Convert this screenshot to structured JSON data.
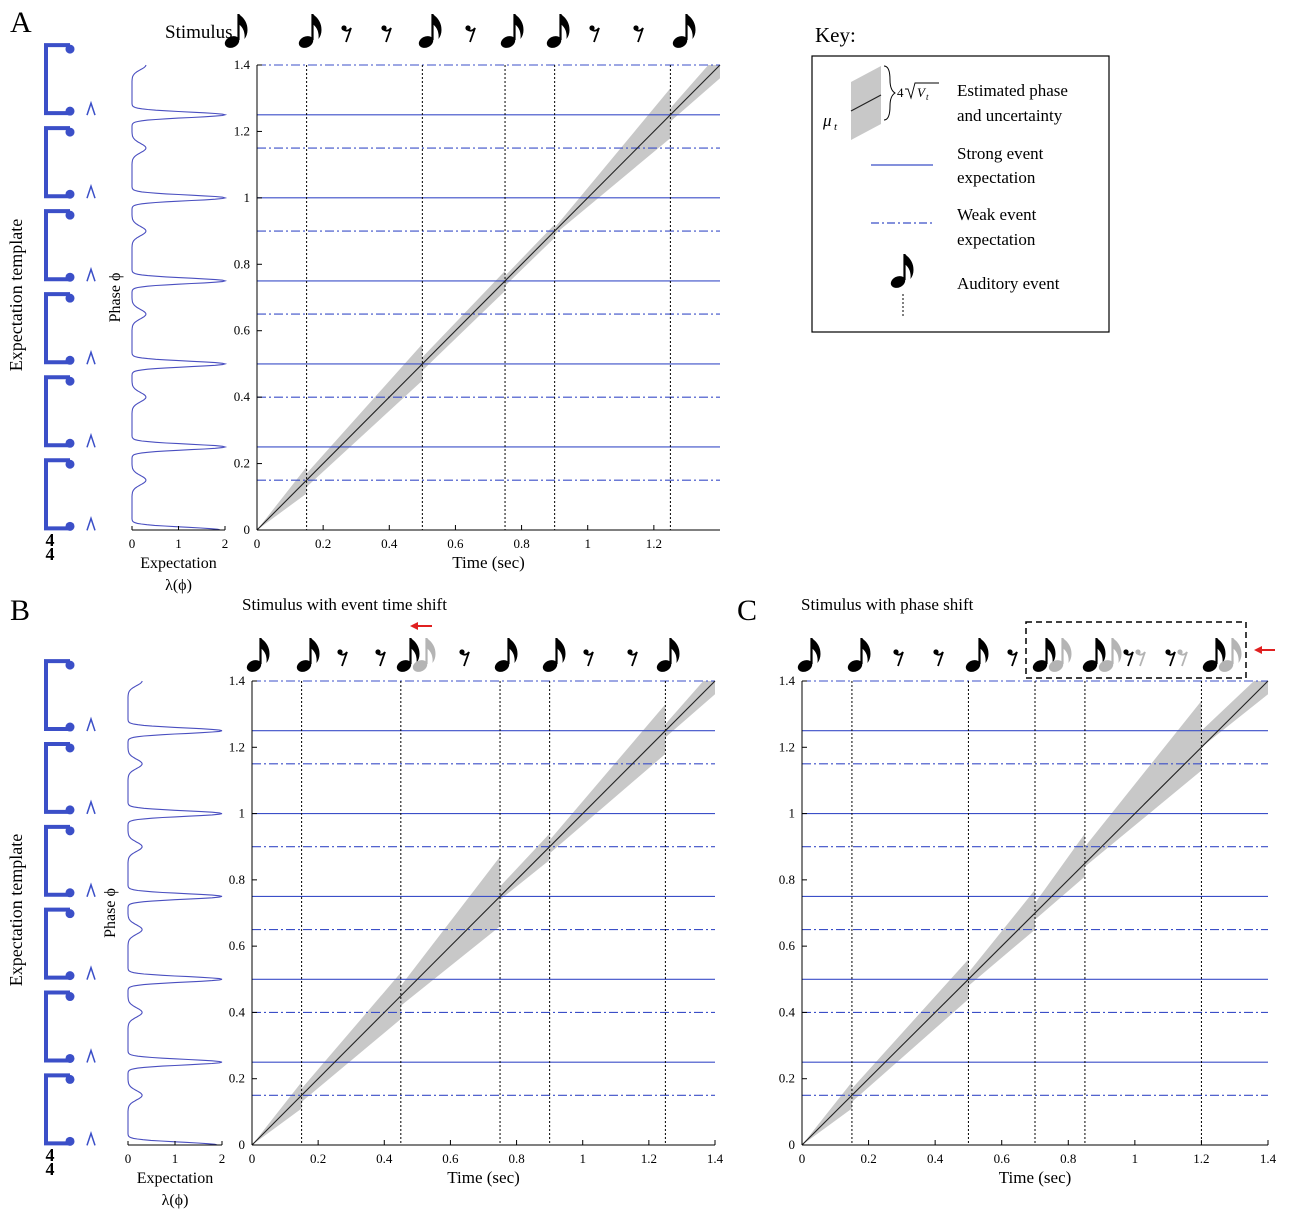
{
  "panel_letters": [
    "A",
    "B",
    "C"
  ],
  "stimulus_labels": {
    "A": "Stimulus",
    "B": "Stimulus with event time shift",
    "C": "Stimulus with phase shift"
  },
  "side_label": "Expectation template",
  "time_signature": "4/4",
  "expectation_xlabel_line1": "Expectation",
  "expectation_xlabel_line2": "λ(ϕ)",
  "expectation_ticks": [
    "0",
    "1",
    "2"
  ],
  "key": {
    "title": "Key:",
    "estimate_label_1": "Estimated phase",
    "estimate_label_2": "and uncertainty",
    "mu_symbol": "μ",
    "mu_sub": "t",
    "width_label": "4",
    "width_sqrt": "V",
    "width_sub": "t",
    "strong_label_1": "Strong event",
    "strong_label_2": "expectation",
    "weak_label_1": "Weak event",
    "weak_label_2": "expectation",
    "auditory_label": "Auditory event"
  },
  "colors": {
    "strong": "#3b4fc8",
    "weak": "#3b4fc8",
    "band": "#c8c8c8",
    "estimate_line": "#222222",
    "shift_arrow": "#e02020",
    "ghost_note": "#b4b4b4",
    "curve": "#4a4fc0"
  },
  "chart_data": [
    {
      "panel": "A",
      "type": "line",
      "xlabel": "Time (sec)",
      "ylabel": "Phase ϕ",
      "xlim": [
        0,
        1.4
      ],
      "ylim": [
        0,
        1.4
      ],
      "xticks": [
        "0",
        "0.2",
        "0.4",
        "0.6",
        "0.8",
        "1",
        "1.2"
      ],
      "yticks": [
        "0",
        "0.2",
        "0.4",
        "0.6",
        "0.8",
        "1",
        "1.2",
        "1.4"
      ],
      "strong_expectations": [
        0.25,
        0.5,
        0.75,
        1.0,
        1.25
      ],
      "weak_expectations": [
        0.15,
        0.4,
        0.65,
        0.9,
        1.15,
        1.4
      ],
      "event_times": [
        0.15,
        0.5,
        0.75,
        0.9,
        1.25
      ],
      "estimate": [
        [
          0,
          0
        ],
        [
          1.4,
          1.4
        ]
      ],
      "uncertainty_band": [
        {
          "x": 0,
          "lo": 0,
          "hi": 0
        },
        {
          "x": 0.15,
          "lo": 0.11,
          "hi": 0.19
        },
        {
          "x": 0.15,
          "lo": 0.13,
          "hi": 0.17
        },
        {
          "x": 0.5,
          "lo": 0.45,
          "hi": 0.56
        },
        {
          "x": 0.5,
          "lo": 0.48,
          "hi": 0.52
        },
        {
          "x": 0.75,
          "lo": 0.72,
          "hi": 0.78
        },
        {
          "x": 0.75,
          "lo": 0.735,
          "hi": 0.765
        },
        {
          "x": 0.9,
          "lo": 0.88,
          "hi": 0.92
        },
        {
          "x": 0.9,
          "lo": 0.89,
          "hi": 0.91
        },
        {
          "x": 1.25,
          "lo": 1.18,
          "hi": 1.33
        },
        {
          "x": 1.25,
          "lo": 1.23,
          "hi": 1.27
        },
        {
          "x": 1.4,
          "lo": 1.36,
          "hi": 1.44
        }
      ],
      "stimulus": [
        "note",
        "note",
        "rest",
        "rest",
        "note",
        "rest",
        "note",
        "note",
        "rest",
        "rest",
        "note"
      ]
    },
    {
      "panel": "B",
      "type": "line",
      "xlabel": "Time (sec)",
      "ylabel": "Phase ϕ",
      "xlim": [
        0,
        1.4
      ],
      "ylim": [
        0,
        1.4
      ],
      "xticks": [
        "0",
        "0.2",
        "0.4",
        "0.6",
        "0.8",
        "1",
        "1.2",
        "1.4"
      ],
      "yticks": [
        "0",
        "0.2",
        "0.4",
        "0.6",
        "0.8",
        "1",
        "1.2",
        "1.4"
      ],
      "strong_expectations": [
        0.25,
        0.5,
        0.75,
        1.0,
        1.25
      ],
      "weak_expectations": [
        0.15,
        0.4,
        0.65,
        0.9,
        1.15,
        1.4
      ],
      "event_times": [
        0.15,
        0.45,
        0.75,
        0.9,
        1.25
      ],
      "estimate": [
        [
          0,
          0
        ],
        [
          1.4,
          1.4
        ]
      ],
      "uncertainty_band": [
        {
          "x": 0,
          "lo": 0,
          "hi": 0
        },
        {
          "x": 0.15,
          "lo": 0.11,
          "hi": 0.19
        },
        {
          "x": 0.15,
          "lo": 0.13,
          "hi": 0.17
        },
        {
          "x": 0.45,
          "lo": 0.38,
          "hi": 0.52
        },
        {
          "x": 0.45,
          "lo": 0.42,
          "hi": 0.48
        },
        {
          "x": 0.75,
          "lo": 0.66,
          "hi": 0.87
        },
        {
          "x": 0.75,
          "lo": 0.74,
          "hi": 0.78
        },
        {
          "x": 0.9,
          "lo": 0.86,
          "hi": 0.94
        },
        {
          "x": 0.9,
          "lo": 0.88,
          "hi": 0.92
        },
        {
          "x": 1.25,
          "lo": 1.18,
          "hi": 1.33
        },
        {
          "x": 1.25,
          "lo": 1.23,
          "hi": 1.27
        },
        {
          "x": 1.4,
          "lo": 1.36,
          "hi": 1.44
        }
      ],
      "stimulus": [
        "note",
        "note",
        "rest",
        "rest",
        "note-shifted",
        "rest",
        "note",
        "note",
        "rest",
        "rest",
        "note"
      ]
    },
    {
      "panel": "C",
      "type": "line",
      "xlabel": "Time (sec)",
      "ylabel": "",
      "xlim": [
        0,
        1.4
      ],
      "ylim": [
        0,
        1.4
      ],
      "xticks": [
        "0",
        "0.2",
        "0.4",
        "0.6",
        "0.8",
        "1",
        "1.2",
        "1.4"
      ],
      "yticks": [
        "0",
        "0.2",
        "0.4",
        "0.6",
        "0.8",
        "1",
        "1.2",
        "1.4"
      ],
      "strong_expectations": [
        0.25,
        0.5,
        0.75,
        1.0,
        1.25
      ],
      "weak_expectations": [
        0.15,
        0.4,
        0.65,
        0.9,
        1.15,
        1.4
      ],
      "event_times": [
        0.15,
        0.5,
        0.7,
        0.85,
        1.2
      ],
      "estimate": [
        [
          0,
          0
        ],
        [
          1.4,
          1.4
        ]
      ],
      "uncertainty_band": [
        {
          "x": 0,
          "lo": 0,
          "hi": 0
        },
        {
          "x": 0.15,
          "lo": 0.11,
          "hi": 0.19
        },
        {
          "x": 0.15,
          "lo": 0.13,
          "hi": 0.17
        },
        {
          "x": 0.5,
          "lo": 0.44,
          "hi": 0.56
        },
        {
          "x": 0.5,
          "lo": 0.48,
          "hi": 0.52
        },
        {
          "x": 0.7,
          "lo": 0.65,
          "hi": 0.77
        },
        {
          "x": 0.7,
          "lo": 0.68,
          "hi": 0.73
        },
        {
          "x": 0.85,
          "lo": 0.81,
          "hi": 0.94
        },
        {
          "x": 0.85,
          "lo": 0.84,
          "hi": 0.9
        },
        {
          "x": 1.2,
          "lo": 1.13,
          "hi": 1.34
        },
        {
          "x": 1.2,
          "lo": 1.2,
          "hi": 1.25
        },
        {
          "x": 1.4,
          "lo": 1.36,
          "hi": 1.44
        }
      ],
      "stimulus": [
        "note",
        "note",
        "rest",
        "rest",
        "note",
        "rest",
        "note-shifted",
        "note-shifted",
        "rest-shifted",
        "rest-shifted",
        "note-shifted"
      ]
    }
  ]
}
